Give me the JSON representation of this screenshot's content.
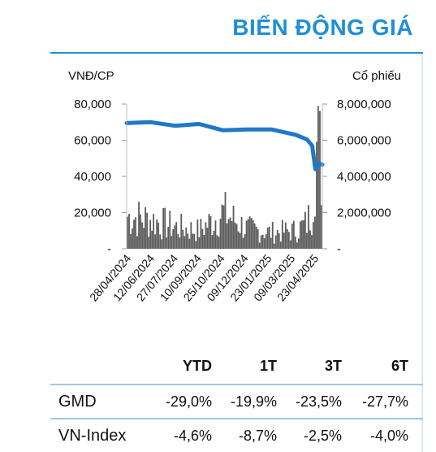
{
  "header": {
    "title": "BIẾN ĐỘNG GIÁ"
  },
  "chart_data": {
    "type": "line+bar",
    "left_axis_label": "VNĐ/CP",
    "right_axis_label": "Cổ phiếu",
    "left_ticks": [
      "80,000",
      "60,000",
      "40,000",
      "20,000",
      "-"
    ],
    "left_tick_values": [
      80000,
      60000,
      40000,
      20000,
      0
    ],
    "right_ticks": [
      "8,000,000",
      "6,000,000",
      "4,000,000",
      "2,000,000",
      "-"
    ],
    "right_tick_values": [
      8000000,
      6000000,
      4000000,
      2000000,
      0
    ],
    "ylim_price": [
      0,
      80000
    ],
    "ylim_volume": [
      0,
      8000000
    ],
    "x_labels": [
      "28/04/2024",
      "12/06/2024",
      "27/07/2024",
      "10/09/2024",
      "25/10/2024",
      "09/12/2024",
      "23/01/2025",
      "09/03/2025",
      "23/04/2025"
    ],
    "price_series": {
      "x": [
        "28/04/2024",
        "12/06/2024",
        "27/07/2024",
        "10/09/2024",
        "25/10/2024",
        "09/12/2024",
        "23/01/2025",
        "09/03/2025",
        "30/03/2025",
        "09/04/2025",
        "15/04/2025",
        "23/04/2025",
        "28/04/2025"
      ],
      "values": [
        69500,
        70000,
        68000,
        69000,
        65500,
        66000,
        66000,
        63000,
        60500,
        57000,
        44000,
        47000,
        46500
      ],
      "color": "#1f78c8"
    },
    "volume_series": {
      "x": [
        "28/04/2024",
        "12/06/2024",
        "27/07/2024",
        "10/09/2024",
        "25/10/2024",
        "09/12/2024",
        "23/01/2025",
        "09/03/2025",
        "30/03/2025",
        "09/04/2025",
        "15/04/2025",
        "23/04/2025",
        "28/04/2025"
      ],
      "values": [
        1800000,
        1600000,
        1200000,
        1000000,
        2000000,
        1100000,
        900000,
        1000000,
        1400000,
        2200000,
        5800000,
        5200000,
        4600000
      ],
      "color": "#5b5b5b"
    }
  },
  "table": {
    "headers": [
      "",
      "YTD",
      "1T",
      "3T",
      "6T"
    ],
    "rows": [
      {
        "name": "GMD",
        "values": [
          "-29,0%",
          "-19,9%",
          "-23,5%",
          "-27,7%"
        ]
      },
      {
        "name": "VN-Index",
        "values": [
          "-4,6%",
          "-8,7%",
          "-2,5%",
          "-4,0%"
        ]
      }
    ]
  }
}
